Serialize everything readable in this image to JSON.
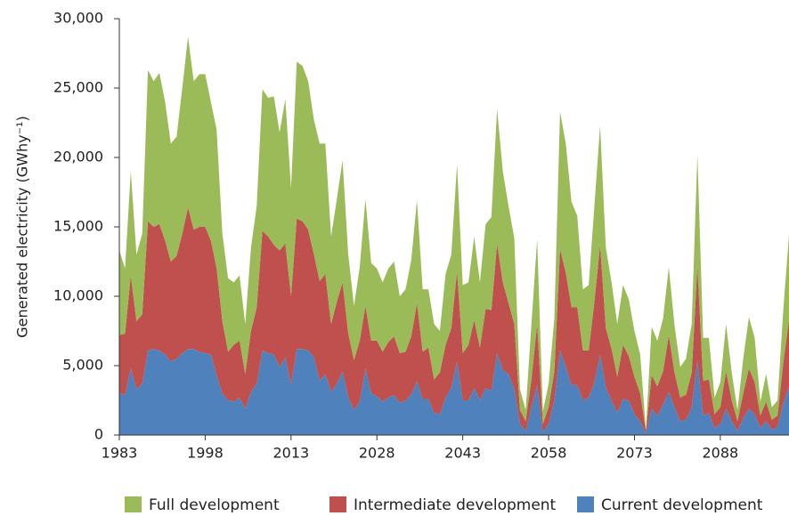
{
  "chart_data": {
    "type": "stacked-area",
    "y_label": "Generated electricity (GWhy⁻¹)",
    "x": [
      1983,
      1984,
      1985,
      1986,
      1987,
      1988,
      1989,
      1990,
      1991,
      1992,
      1993,
      1994,
      1995,
      1996,
      1997,
      1998,
      1999,
      2000,
      2001,
      2002,
      2003,
      2004,
      2005,
      2006,
      2007,
      2008,
      2009,
      2010,
      2011,
      2012,
      2013,
      2014,
      2015,
      2016,
      2017,
      2018,
      2019,
      2020,
      2021,
      2022,
      2023,
      2024,
      2025,
      2026,
      2027,
      2028,
      2029,
      2030,
      2031,
      2032,
      2033,
      2034,
      2035,
      2036,
      2037,
      2038,
      2039,
      2040,
      2041,
      2042,
      2043,
      2044,
      2045,
      2046,
      2047,
      2048,
      2049,
      2050,
      2051,
      2052,
      2053,
      2054,
      2055,
      2056,
      2057,
      2058,
      2059,
      2060,
      2061,
      2062,
      2063,
      2064,
      2065,
      2066,
      2067,
      2068,
      2069,
      2070,
      2071,
      2072,
      2073,
      2074,
      2075,
      2076,
      2077,
      2078,
      2079,
      2080,
      2081,
      2082,
      2083,
      2084,
      2085,
      2086,
      2087,
      2088,
      2089,
      2090,
      2091,
      2092,
      2093,
      2094,
      2095,
      2096,
      2097,
      2098,
      2099,
      2100
    ],
    "series": [
      {
        "name": "Current development",
        "color": "#4f81bd",
        "values": [
          3000,
          2900,
          4800,
          3300,
          3700,
          6100,
          6200,
          6100,
          5800,
          5300,
          5500,
          5900,
          6200,
          6200,
          6000,
          5900,
          5800,
          4300,
          3000,
          2500,
          2400,
          2700,
          1900,
          3100,
          3700,
          6100,
          5900,
          5800,
          4900,
          5600,
          3600,
          6200,
          6200,
          6100,
          5600,
          3900,
          4400,
          3100,
          3700,
          4600,
          2700,
          1800,
          2400,
          4800,
          3000,
          2800,
          2400,
          2700,
          2900,
          2300,
          2500,
          2900,
          3900,
          2600,
          2600,
          1600,
          1500,
          2700,
          3400,
          5300,
          2500,
          2500,
          3400,
          2500,
          3400,
          3200,
          5900,
          4700,
          4400,
          3300,
          800,
          300,
          2000,
          3600,
          200,
          800,
          2500,
          6100,
          4900,
          3600,
          3600,
          2500,
          2700,
          3800,
          5800,
          3400,
          2500,
          1600,
          2600,
          2500,
          1500,
          1000,
          100,
          1900,
          1400,
          2200,
          3100,
          2000,
          1000,
          1100,
          2000,
          5400,
          1400,
          1600,
          500,
          800,
          1900,
          1000,
          300,
          1200,
          1900,
          1500,
          500,
          1000,
          400,
          600,
          2300,
          3500
        ]
      },
      {
        "name": "Intermediate development",
        "color": "#c0504d",
        "values": [
          4200,
          4400,
          6700,
          4900,
          5000,
          9300,
          8800,
          9100,
          8200,
          7200,
          7400,
          8600,
          10200,
          8600,
          9000,
          9100,
          8200,
          7700,
          5200,
          3500,
          4100,
          4100,
          2500,
          4400,
          5500,
          8600,
          8400,
          7900,
          8400,
          8200,
          6400,
          9400,
          9200,
          8700,
          7400,
          7200,
          7200,
          4900,
          5900,
          6400,
          4600,
          3600,
          4400,
          4500,
          3800,
          4000,
          3600,
          4000,
          4200,
          3600,
          3500,
          4200,
          5600,
          3400,
          3700,
          2400,
          3000,
          3800,
          4300,
          6500,
          3400,
          4000,
          4900,
          3800,
          5700,
          5800,
          7900,
          6300,
          5100,
          4700,
          1000,
          700,
          2000,
          4400,
          600,
          1200,
          2100,
          7300,
          6800,
          5600,
          5600,
          3600,
          3400,
          5800,
          7900,
          4300,
          3700,
          2600,
          3900,
          3200,
          2700,
          2000,
          200,
          2400,
          2100,
          2400,
          4100,
          2500,
          1700,
          1800,
          2500,
          6800,
          2500,
          2400,
          1000,
          1200,
          2700,
          1500,
          700,
          1800,
          2900,
          2300,
          900,
          1400,
          700,
          800,
          2900,
          4800
        ]
      },
      {
        "name": "Full development",
        "color": "#9bbb59",
        "values": [
          6100,
          4700,
          7500,
          4800,
          5800,
          10900,
          10500,
          10900,
          10000,
          8500,
          8600,
          10500,
          12300,
          10700,
          11000,
          11000,
          10000,
          10000,
          6300,
          5300,
          4500,
          4700,
          3600,
          6000,
          7300,
          10200,
          10000,
          10700,
          8500,
          10400,
          7800,
          11300,
          11200,
          10700,
          9700,
          9900,
          9400,
          6300,
          7400,
          8800,
          5700,
          3900,
          5300,
          7700,
          5600,
          5200,
          5000,
          5300,
          5400,
          4100,
          4500,
          5500,
          7400,
          4500,
          4200,
          4000,
          3000,
          5100,
          5300,
          7700,
          4900,
          4500,
          6000,
          4700,
          6100,
          6700,
          9700,
          8000,
          7000,
          6200,
          1500,
          800,
          4000,
          6100,
          900,
          1700,
          3800,
          9900,
          9300,
          7600,
          6600,
          4400,
          4700,
          6900,
          8600,
          5800,
          4800,
          3800,
          4300,
          4100,
          3300,
          2800,
          100,
          3500,
          3300,
          3800,
          4900,
          3400,
          2200,
          2600,
          3500,
          8000,
          3100,
          3000,
          1200,
          1800,
          3400,
          2000,
          800,
          2500,
          3700,
          3200,
          1000,
          2000,
          900,
          1100,
          3800,
          6100
        ]
      }
    ],
    "xlim": [
      1983,
      2100
    ],
    "ylim": [
      0,
      30000
    ],
    "xticks": [
      1983,
      1998,
      2013,
      2028,
      2043,
      2058,
      2073,
      2088
    ],
    "yticks": [
      0,
      {
        "value": 5000,
        "label": "5,000"
      },
      {
        "value": 10000,
        "label": "10,000"
      },
      {
        "value": 15000,
        "label": "15,000"
      },
      {
        "value": 20000,
        "label": "20,000"
      },
      {
        "value": 25000,
        "label": "25,000"
      },
      {
        "value": 30000,
        "label": "30,000"
      }
    ],
    "legend": "bottom"
  }
}
